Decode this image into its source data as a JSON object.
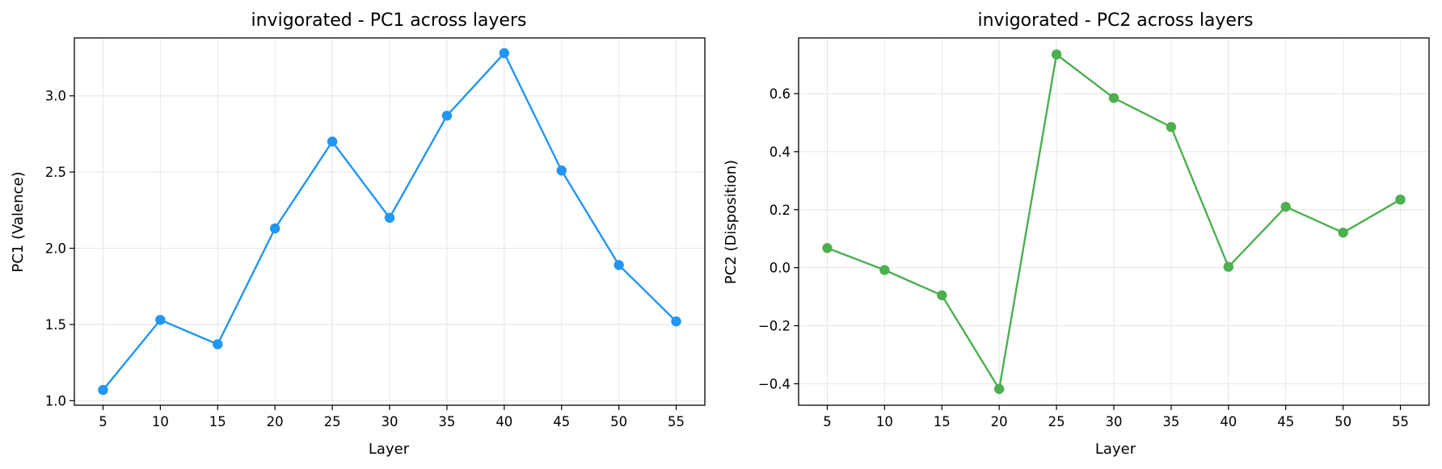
{
  "chart_data": [
    {
      "type": "line",
      "title": "invigorated - PC1 across layers",
      "xlabel": "Layer",
      "ylabel": "PC1 (Valence)",
      "x": [
        5,
        10,
        15,
        20,
        25,
        30,
        35,
        40,
        45,
        50,
        55
      ],
      "xticks": [
        5,
        10,
        15,
        20,
        25,
        30,
        35,
        40,
        45,
        50,
        55
      ],
      "xlim": [
        2.5,
        57.5
      ],
      "yticks": [
        1.0,
        1.5,
        2.0,
        2.5,
        3.0
      ],
      "ytick_labels": [
        "1.0",
        "1.5",
        "2.0",
        "2.5",
        "3.0"
      ],
      "ylim": [
        0.97,
        3.38
      ],
      "grid": true,
      "series": [
        {
          "values": [
            1.07,
            1.53,
            1.37,
            2.13,
            2.7,
            2.2,
            2.87,
            3.28,
            2.51,
            1.89,
            1.52
          ],
          "color": "#2196f3"
        }
      ]
    },
    {
      "type": "line",
      "title": "invigorated - PC2 across layers",
      "xlabel": "Layer",
      "ylabel": "PC2 (Disposition)",
      "x": [
        5,
        10,
        15,
        20,
        25,
        30,
        35,
        40,
        45,
        50,
        55
      ],
      "xticks": [
        5,
        10,
        15,
        20,
        25,
        30,
        35,
        40,
        45,
        50,
        55
      ],
      "xlim": [
        2.5,
        57.5
      ],
      "yticks": [
        -0.4,
        -0.2,
        0.0,
        0.2,
        0.4,
        0.6
      ],
      "ytick_labels": [
        "−0.4",
        "−0.2",
        "0.0",
        "0.2",
        "0.4",
        "0.6"
      ],
      "ylim": [
        -0.474,
        0.792
      ],
      "grid": true,
      "series": [
        {
          "values": [
            0.068,
            -0.008,
            -0.095,
            -0.418,
            0.735,
            0.585,
            0.485,
            0.003,
            0.21,
            0.121,
            0.235
          ],
          "color": "#4caf50"
        }
      ]
    }
  ]
}
